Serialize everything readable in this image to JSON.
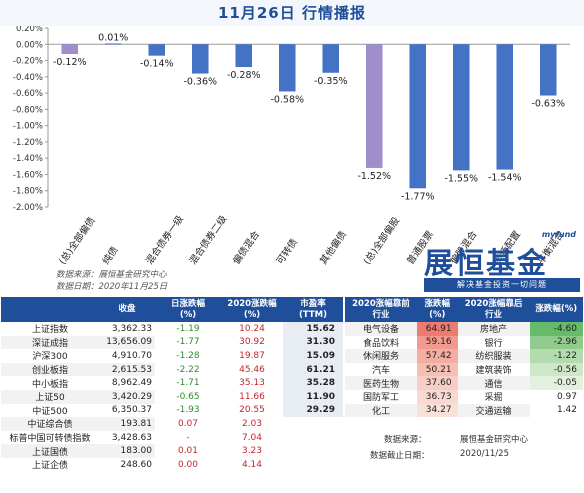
{
  "title": "11月26日  行情播报",
  "chart_data": {
    "type": "bar",
    "categories": [
      "(总)全部偏债",
      "纯债",
      "混合债券一级",
      "混合债券二级",
      "偏债混合",
      "可转债",
      "其他偏债",
      "(总)全部偏股",
      "普通股票",
      "偏股混合",
      "灵活配置",
      "平衡混合"
    ],
    "values": [
      -0.12,
      0.01,
      -0.14,
      -0.36,
      -0.28,
      -0.58,
      -0.35,
      -1.52,
      -1.77,
      -1.55,
      -1.54,
      -0.63
    ],
    "value_labels": [
      "-0.12%",
      "0.01%",
      "-0.14%",
      "-0.36%",
      "-0.28%",
      "-0.58%",
      "-0.35%",
      "-1.52%",
      "-1.77%",
      "-1.55%",
      "-1.54%",
      "-0.63%"
    ],
    "highlight": [
      true,
      false,
      false,
      false,
      false,
      false,
      false,
      true,
      false,
      false,
      false,
      false
    ],
    "colors": {
      "normal": "#4472c4",
      "highlight": "#9e8ec9"
    },
    "ylim": [
      -2.0,
      0.2
    ],
    "yticks": [
      0.2,
      0.0,
      -0.2,
      -0.4,
      -0.6,
      -0.8,
      -1.0,
      -1.2,
      -1.4,
      -1.6,
      -1.8,
      -2.0
    ],
    "ytick_labels": [
      "0.20%",
      "0.00%",
      "-0.20%",
      "-0.40%",
      "-0.60%",
      "-0.80%",
      "-1.00%",
      "-1.20%",
      "-1.40%",
      "-1.60%",
      "-1.80%",
      "-2.00%"
    ],
    "grid": false
  },
  "source": {
    "line1": "数据来源：展恒基金研究中心",
    "line2": "数据日期：2020年11月25日"
  },
  "logo": {
    "top": "myfund",
    "main": "展恒基金",
    "sub": "解决基金投资一切问题"
  },
  "index_table": {
    "headers": [
      "",
      "收盘",
      "日涨跌幅\n(%)",
      "2020涨跌幅\n(%)",
      "市盈率\n(TTM)"
    ],
    "rows": [
      {
        "name": "上证指数",
        "close": "3,362.33",
        "chg": "-1.19",
        "ytd": "10.24",
        "pe": "15.62"
      },
      {
        "name": "深证成指",
        "close": "13,656.09",
        "chg": "-1.77",
        "ytd": "30.92",
        "pe": "31.30"
      },
      {
        "name": "沪深300",
        "close": "4,910.70",
        "chg": "-1.28",
        "ytd": "19.87",
        "pe": "15.09"
      },
      {
        "name": "创业板指",
        "close": "2,615.53",
        "chg": "-2.22",
        "ytd": "45.46",
        "pe": "61.21"
      },
      {
        "name": "中小板指",
        "close": "8,962.49",
        "chg": "-1.71",
        "ytd": "35.13",
        "pe": "35.28"
      },
      {
        "name": "上证50",
        "close": "3,420.29",
        "chg": "-0.65",
        "ytd": "11.66",
        "pe": "11.90"
      },
      {
        "name": "中证500",
        "close": "6,350.37",
        "chg": "-1.93",
        "ytd": "20.55",
        "pe": "29.29"
      },
      {
        "name": "中证综合债",
        "close": "193.81",
        "chg": "0.07",
        "ytd": "2.03",
        "pe": ""
      },
      {
        "name": "标普中国可转债指数",
        "close": "3,428.63",
        "chg": "-",
        "ytd": "7.04",
        "pe": ""
      },
      {
        "name": "上证国债",
        "close": "183.00",
        "chg": "0.01",
        "ytd": "3.23",
        "pe": ""
      },
      {
        "name": "上证企债",
        "close": "248.60",
        "chg": "0.00",
        "ytd": "4.14",
        "pe": ""
      }
    ]
  },
  "sector_table": {
    "headers": [
      "2020涨幅靠前\n行业",
      "涨跌幅\n(%)",
      "2020涨幅靠后\n行业",
      "涨跌幅(%)"
    ],
    "rows": [
      {
        "top": "电气设备",
        "top_v": "64.91",
        "bot": "房地产",
        "bot_v": "-4.60"
      },
      {
        "top": "食品饮料",
        "top_v": "59.16",
        "bot": "银行",
        "bot_v": "-2.96"
      },
      {
        "top": "休闲服务",
        "top_v": "57.42",
        "bot": "纺织服装",
        "bot_v": "-1.22"
      },
      {
        "top": "汽车",
        "top_v": "50.21",
        "bot": "建筑装饰",
        "bot_v": "-0.56"
      },
      {
        "top": "医药生物",
        "top_v": "37.60",
        "bot": "通信",
        "bot_v": "-0.05"
      },
      {
        "top": "国防军工",
        "top_v": "36.73",
        "bot": "采掘",
        "bot_v": "0.97"
      },
      {
        "top": "化工",
        "top_v": "34.27",
        "bot": "交通运输",
        "bot_v": "1.42"
      }
    ],
    "top_colors": [
      "#ee7b6f",
      "#f19a8d",
      "#f3aea2",
      "#f5bfb4",
      "#f7cec5",
      "#f8d8d0",
      "#f9e0d9"
    ],
    "bot_colors": [
      "#66bb6a",
      "#8fcb8d",
      "#b4dbb0",
      "#cfe7c9",
      "#e3f0de",
      "#ffffff",
      "#ffffff"
    ]
  },
  "footnotes": {
    "source_label": "数据来源：",
    "source_value": "展恒基金研究中心",
    "date_label": "数据截止日期：",
    "date_value": "2020/11/25"
  }
}
